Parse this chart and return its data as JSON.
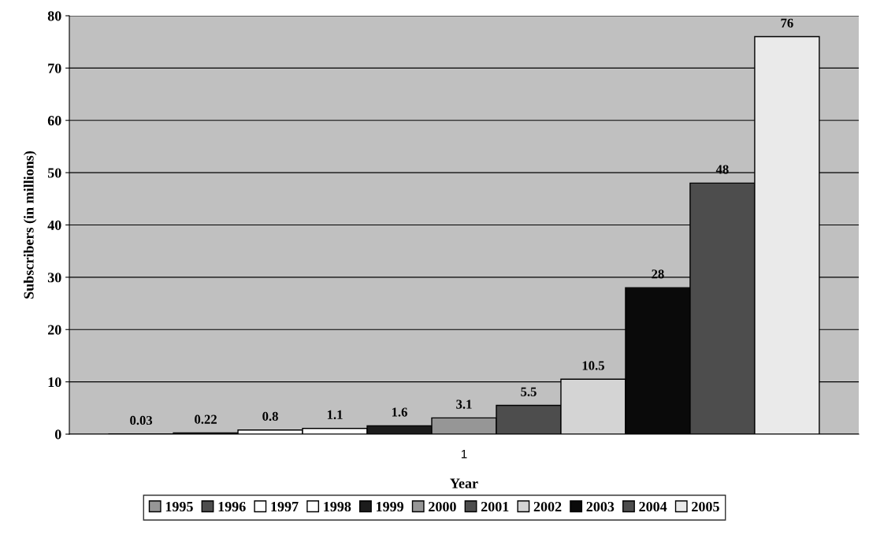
{
  "chart_data": {
    "type": "bar",
    "xlabel": "Year",
    "ylabel": "Subscribers (in millions)",
    "categories": [
      "1"
    ],
    "series": [
      {
        "name": "1995",
        "color": "#969696",
        "values": [
          0.03
        ]
      },
      {
        "name": "1996",
        "color": "#4d4d4d",
        "values": [
          0.22
        ]
      },
      {
        "name": "1997",
        "color": "#ffffff",
        "values": [
          0.8
        ]
      },
      {
        "name": "1998",
        "color": "#ffffff",
        "values": [
          1.1
        ]
      },
      {
        "name": "1999",
        "color": "#1c1c1c",
        "values": [
          1.6
        ]
      },
      {
        "name": "2000",
        "color": "#969696",
        "values": [
          3.1
        ]
      },
      {
        "name": "2001",
        "color": "#4d4d4d",
        "values": [
          5.5
        ]
      },
      {
        "name": "2002",
        "color": "#d4d4d4",
        "values": [
          10.5
        ]
      },
      {
        "name": "2003",
        "color": "#0a0a0a",
        "values": [
          28
        ]
      },
      {
        "name": "2004",
        "color": "#4d4d4d",
        "values": [
          48
        ]
      },
      {
        "name": "2005",
        "color": "#eaeaea",
        "values": [
          76
        ]
      }
    ],
    "ylim": [
      0,
      80
    ],
    "yticks": [
      0,
      10,
      20,
      30,
      40,
      50,
      60,
      70,
      80
    ],
    "grid": "y",
    "legend": "bottom",
    "data_labels": true
  }
}
